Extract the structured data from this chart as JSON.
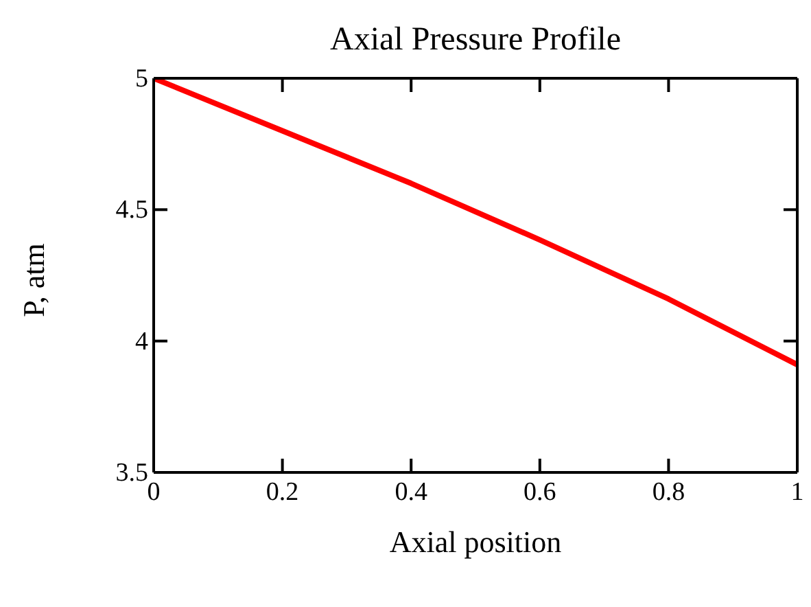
{
  "chart_data": {
    "type": "line",
    "title": "Axial Pressure Profile",
    "xlabel": "Axial position",
    "ylabel": "P, atm",
    "x": [
      0,
      0.2,
      0.4,
      0.6,
      0.8,
      1
    ],
    "series": [
      {
        "color": "#ff0000",
        "values": [
          5,
          4.8,
          4.6,
          4.385,
          4.16,
          3.91
        ]
      }
    ],
    "xlim": [
      0,
      1
    ],
    "xticks": [
      0,
      0.2,
      0.4,
      0.6,
      0.8,
      1
    ],
    "ylim": [
      3.5,
      5
    ],
    "yticks": [
      3.5,
      4,
      4.5,
      5
    ],
    "marker": "none",
    "line_style": "solid"
  }
}
